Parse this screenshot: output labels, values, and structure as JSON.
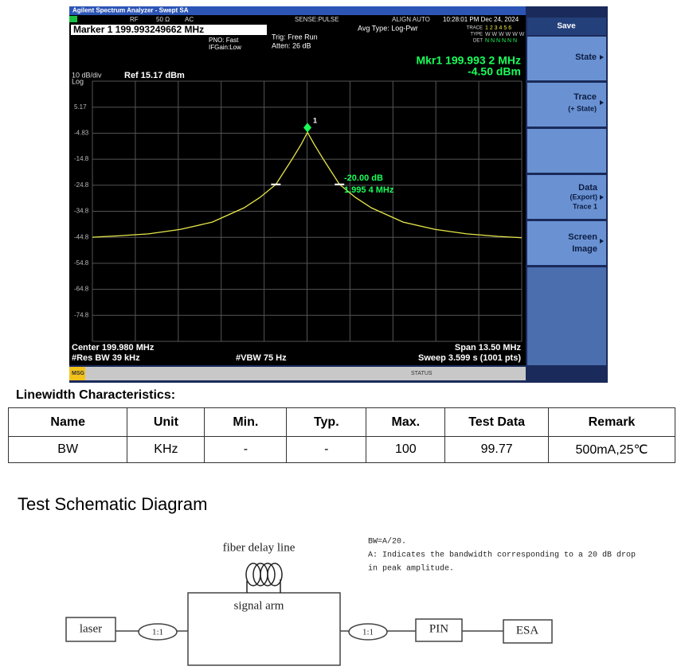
{
  "analyzer": {
    "title_bar": "Agilent Spectrum Analyzer - Swept SA",
    "status_items": [
      "RF",
      "50 Ω",
      "AC",
      "SENSE:PULSE",
      "ALIGN AUTO",
      "10:28:01 PM Dec 24, 2024"
    ],
    "marker_readout": "Marker 1 199.993249662 MHz",
    "settings": [
      "PNO: Fast",
      "IFGain:Low",
      "Trig: Free Run",
      "Atten: 26 dB",
      "Avg Type: Log-Pwr"
    ],
    "trace_table": {
      "labels": [
        "TRACE",
        "TYPE",
        "DET"
      ],
      "rows": [
        "1 2 3 4 5 6",
        "W W W W W W",
        "N N N N N N"
      ]
    },
    "marker_freq": "Mkr1 199.993 2 MHz",
    "marker_amp": "-4.50 dBm",
    "scale": "10 dB/div",
    "scale_type": "Log",
    "ref_level": "Ref 15.17 dBm",
    "marker_label": "1",
    "delta_db": "-20.00 dB",
    "delta_freq": "1.995 4 MHz",
    "footer": {
      "center": "Center 199.980 MHz",
      "rbw": "#Res BW 39 kHz",
      "vbw": "#VBW 75 Hz",
      "span": "Span 13.50 MHz",
      "sweep": "Sweep  3.599 s (1001 pts)"
    },
    "msg": "MSG",
    "status": "STATUS",
    "softkeys": [
      "Save",
      "State",
      "Trace",
      "(+ State)",
      "Data",
      "(Export)",
      "Trace 1",
      "Screen",
      "Image"
    ]
  },
  "spectrum": {
    "xlim": [
      193.23,
      206.73
    ],
    "ylim": [
      -84.83,
      15.17
    ],
    "yticks": [
      5.17,
      -4.83,
      {
        "value": -14.83,
        "label": "-14.8"
      },
      {
        "value": -24.83,
        "label": "-24.8"
      },
      {
        "value": -34.83,
        "label": "-34.8"
      },
      {
        "value": -44.83,
        "label": "-44.8"
      },
      {
        "value": -54.83,
        "label": "-54.8"
      },
      {
        "value": -64.83,
        "label": "-64.8"
      },
      {
        "value": -74.83,
        "label": "-74.8"
      }
    ],
    "trace": {
      "x": [
        193.23,
        194.0,
        195.0,
        196.0,
        197.0,
        198.0,
        198.5,
        199.0,
        199.5,
        199.8,
        199.9932,
        200.2,
        200.5,
        201.0,
        201.5,
        202.0,
        203.0,
        204.0,
        205.0,
        206.0,
        206.73
      ],
      "y": [
        -44.8,
        -44.3,
        -43.5,
        -41.8,
        -39.0,
        -33.5,
        -29.5,
        -24.5,
        -15.0,
        -9.0,
        -4.5,
        -9.0,
        -15.0,
        -24.5,
        -29.5,
        -33.5,
        -39.0,
        -41.8,
        -43.5,
        -44.5,
        -45.0
      ]
    },
    "marker": {
      "x": 199.9932,
      "y": -4.5
    },
    "delta_markers": {
      "x": [
        199.0,
        201.0
      ],
      "y": [
        -24.5,
        -24.5
      ]
    }
  },
  "section_title": "Linewidth Characteristics:",
  "table": {
    "header": [
      "Name",
      "Unit",
      "Min.",
      "Typ.",
      "Max.",
      "Test Data",
      "Remark"
    ],
    "rows": [
      [
        "BW",
        "KHz",
        "-",
        "-",
        "100",
        "99.77",
        "500mA,25℃"
      ]
    ]
  },
  "diagram_title": "Test Schematic Diagram",
  "diagram": {
    "fiber": "fiber delay line",
    "arm": "signal arm",
    "laser": "laser",
    "coupler_in": "1:1",
    "coupler_out": "1:1",
    "pin": "PIN",
    "esa": "ESA",
    "note_formula": "BW=A/20.",
    "note_lines": [
      "A: Indicates the bandwidth corresponding to a 20 dB drop",
      "in peak amplitude."
    ]
  }
}
